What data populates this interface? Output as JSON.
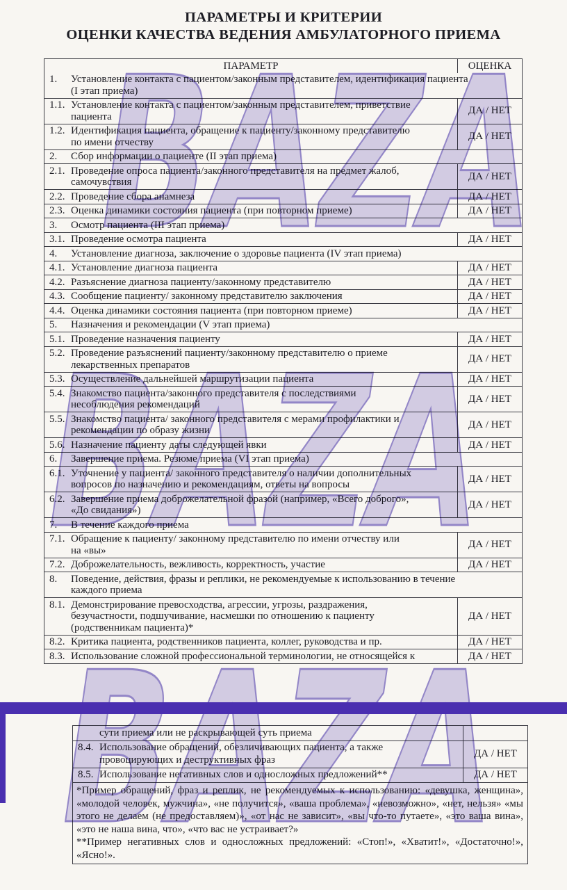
{
  "page": {
    "title_line1": "ПАРАМЕТРЫ И КРИТЕРИИ",
    "title_line2": "ОЦЕНКИ КАЧЕСТВА ВЕДЕНИЯ АМБУЛАТОРНОГО ПРИЕМА"
  },
  "watermark": {
    "text": "BAZA",
    "fill": "#d8d3ef",
    "outline": "#978bd2"
  },
  "separator": {
    "color": "#4a2fb0"
  },
  "table1": {
    "header": {
      "parameter": "ПАРАМЕТР",
      "rating": "ОЦЕНКА"
    },
    "rows": [
      {
        "type": "section",
        "num": "1.",
        "text": "Установление контакта с пациентом/законным представителем, идентификация пациента\n(I этап приема)"
      },
      {
        "type": "item",
        "num": "1.1.",
        "text": "Установление контакта с пациентом/законным представителем, приветствие\nпациента",
        "rating": "ДА / НЕТ"
      },
      {
        "type": "item",
        "num": "1.2.",
        "text": "Идентификация пациента, обращение к пациенту/законному представителю\nпо имени отчеству",
        "rating": "ДА / НЕТ"
      },
      {
        "type": "section",
        "num": "2.",
        "text": "Сбор информации о пациенте (II этап приема)"
      },
      {
        "type": "item",
        "num": "2.1.",
        "text": "Проведение опроса пациента/законного представителя на предмет жалоб,\nсамочувствия",
        "rating": "ДА / НЕТ"
      },
      {
        "type": "item",
        "num": "2.2.",
        "text": "Проведение сбора анамнеза",
        "rating": "ДА / НЕТ"
      },
      {
        "type": "item",
        "num": "2.3.",
        "text": "Оценка динамики состояния пациента (при повторном приеме)",
        "rating": "ДА / НЕТ"
      },
      {
        "type": "section",
        "num": "3.",
        "text": "Осмотр пациента (III этап приема)"
      },
      {
        "type": "item",
        "num": "3.1.",
        "text": "Проведение осмотра пациента",
        "rating": "ДА / НЕТ"
      },
      {
        "type": "section",
        "num": "4.",
        "text": "Установление диагноза, заключение о здоровье пациента (IV этап приема)"
      },
      {
        "type": "item",
        "num": "4.1.",
        "text": "Установление диагноза пациента",
        "rating": "ДА / НЕТ"
      },
      {
        "type": "item",
        "num": "4.2.",
        "text": "Разъяснение диагноза пациенту/законному представителю",
        "rating": "ДА / НЕТ"
      },
      {
        "type": "item",
        "num": "4.3.",
        "text": "Сообщение пациенту/ законному представителю заключения",
        "rating": "ДА / НЕТ"
      },
      {
        "type": "item",
        "num": "4.4.",
        "text": "Оценка динамики состояния пациента (при повторном приеме)",
        "rating": "ДА / НЕТ"
      },
      {
        "type": "section",
        "num": "5.",
        "text": "Назначения и рекомендации (V этап приема)"
      },
      {
        "type": "item",
        "num": "5.1.",
        "text": "Проведение назначения пациенту",
        "rating": "ДА / НЕТ"
      },
      {
        "type": "item",
        "num": "5.2.",
        "text": "Проведение разъяснений пациенту/законному представителю о приеме\nлекарственных препаратов",
        "rating": "ДА / НЕТ"
      },
      {
        "type": "item",
        "num": "5.3.",
        "text": "Осуществление дальнейшей маршрутизации пациента",
        "rating": "ДА / НЕТ"
      },
      {
        "type": "item",
        "num": "5.4.",
        "text": "Знакомство пациента/законного представителя с последствиями\nнесоблюдения рекомендаций",
        "rating": "ДА / НЕТ"
      },
      {
        "type": "item",
        "num": "5.5.",
        "text": "Знакомство пациента/ законного представителя с мерами профилактики и\nрекомендации по образу жизни",
        "rating": "ДА / НЕТ"
      },
      {
        "type": "item",
        "num": "5.6.",
        "text": "Назначение пациенту даты следующей явки",
        "rating": "ДА / НЕТ"
      },
      {
        "type": "section",
        "num": "6.",
        "text": "Завершение приема. Резюме приема (VI этап приема)"
      },
      {
        "type": "item",
        "num": "6.1.",
        "text": "Уточнение у пациента/ законного представителя о наличии дополнительных\nвопросов по назначению и рекомендациям, ответы на вопросы",
        "rating": "ДА / НЕТ"
      },
      {
        "type": "item",
        "num": "6.2.",
        "text": "Завершение приема доброжелательной фразой (например, «Всего доброго»,\n«До свидания»)",
        "rating": "ДА / НЕТ"
      },
      {
        "type": "section",
        "num": "7.",
        "text": "В течение каждого приема"
      },
      {
        "type": "item",
        "num": "7.1.",
        "text": "Обращение к пациенту/ законному представителю по имени отчеству или\nна «вы»",
        "rating": "ДА / НЕТ"
      },
      {
        "type": "item",
        "num": "7.2.",
        "text": "Доброжелательность, вежливость, корректность, участие",
        "rating": "ДА / НЕТ"
      },
      {
        "type": "section",
        "num": "8.",
        "text": "Поведение, действия, фразы и реплики, не рекомендуемые к использованию в течение\nкаждого приема"
      },
      {
        "type": "item",
        "num": "8.1.",
        "text": "Демонстрирование превосходства, агрессии, угрозы, раздражения,\nбезучастности, подшучивание, насмешки по отношению к пациенту\n(родственникам пациента)*",
        "rating": "ДА / НЕТ"
      },
      {
        "type": "item",
        "num": "8.2.",
        "text": "Критика пациента, родственников пациента, коллег, руководства и пр.",
        "rating": "ДА / НЕТ"
      },
      {
        "type": "item",
        "num": "8.3.",
        "text": "Использование сложной профессиональной терминологии, не относящейся к",
        "rating": "ДА / НЕТ"
      }
    ]
  },
  "table2": {
    "rows": [
      {
        "type": "item",
        "num": "",
        "text": "сути приема или не раскрывающей суть приема",
        "rating": ""
      },
      {
        "type": "item",
        "num": "8.4.",
        "text": "Использование обращений, обезличивающих пациента, а также\nпровоцирующих и деструктивных фраз",
        "rating": "ДА / НЕТ"
      },
      {
        "type": "item",
        "num": "8.5.",
        "text": "Использование негативных слов и односложных предложений**",
        "rating": "ДА / НЕТ"
      }
    ],
    "footnote1": "*Пример обращений, фраз и реплик, не рекомендуемых к использованию: «девушка, женщина», «молодой человек, мужчина», «не получится», «ваша проблема», «невозможно», «нет, нельзя» «мы этого не делаем (не предоставляем)», «от нас не зависит», «вы что-то путаете», «это ваша вина», «это не наша вина, что», «что вас не устраивает?»",
    "footnote2": "**Пример негативных слов и односложных предложений: «Стоп!», «Хватит!», «Достаточно!», «Ясно!»."
  }
}
